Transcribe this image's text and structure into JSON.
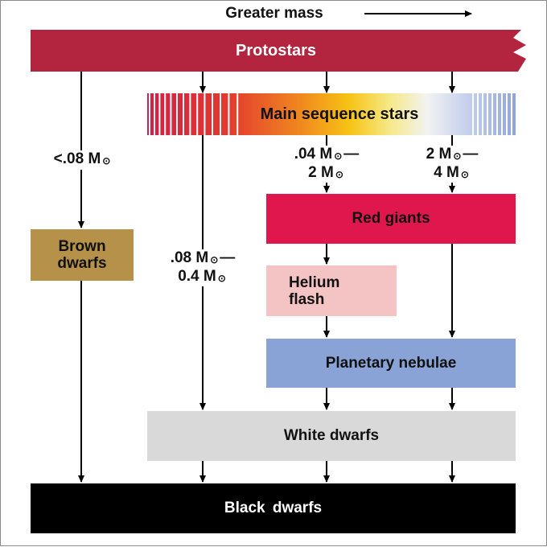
{
  "header": {
    "text": "Greater mass"
  },
  "stages": {
    "protostars": "Protostars",
    "main_sequence": "Main sequence stars",
    "brown_dwarfs": "Brown dwarfs",
    "red_giants": "Red giants",
    "helium_flash": "Helium flash",
    "planetary_nebulae": "Planetary nebulae",
    "white_dwarfs": "White dwarfs",
    "black_dwarfs": "Black dwarfs"
  },
  "mass_ranges": {
    "below_008": {
      "value": "<.08 M",
      "sun": "⊙"
    },
    "r008_04": {
      "from": ".08 M",
      "from_sun": "⊙",
      "dash": "—",
      "to": "0.4 M",
      "to_sun": "⊙"
    },
    "r004_2": {
      "from": ".04 M",
      "from_sun": "⊙",
      "dash": "—",
      "to": "2 M",
      "to_sun": "⊙"
    },
    "r2_4": {
      "from": "2 M",
      "from_sun": "⊙",
      "dash": "—",
      "to": "4 M",
      "to_sun": "⊙"
    }
  },
  "colors": {
    "protostars": "#b3253f",
    "red_giants": "#e0174d",
    "brown_dwarfs": "#b5914a",
    "helium_flash": "#f4c3c3",
    "planetary_nebulae": "#8aa3d6",
    "white_dwarfs": "#d9d9d9",
    "black_dwarfs": "#000000"
  }
}
